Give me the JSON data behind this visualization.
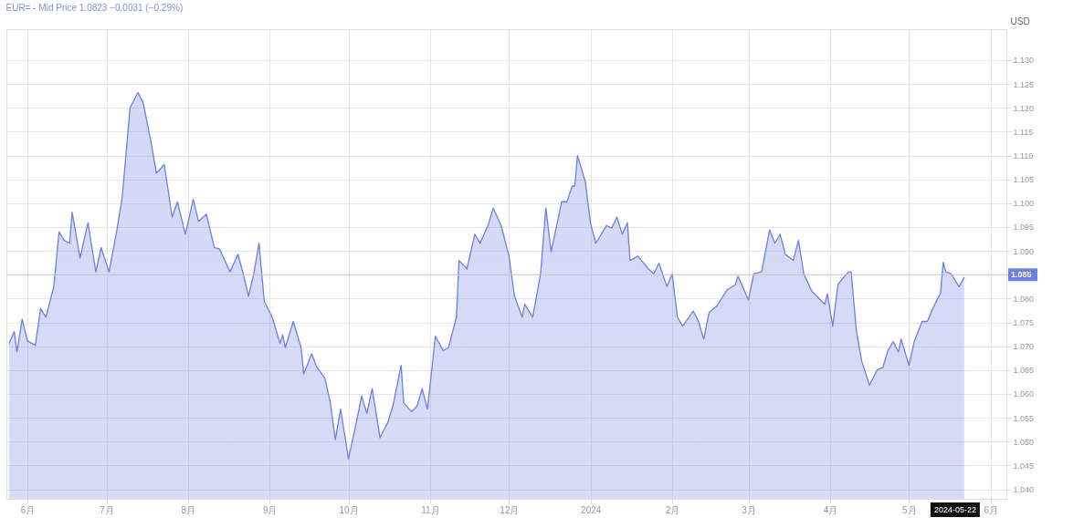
{
  "chart_data": {
    "type": "area",
    "title": "EUR= - Mid Price 1.0823 −0.0031 (−0.29%)",
    "ylabel": "USD",
    "x": [
      "2023-05-25",
      "2023-05-27",
      "2023-05-28",
      "2023-05-30",
      "2023-06-01",
      "2023-06-04",
      "2023-06-06",
      "2023-06-08",
      "2023-06-11",
      "2023-06-13",
      "2023-06-15",
      "2023-06-17",
      "2023-06-18",
      "2023-06-21",
      "2023-06-24",
      "2023-06-27",
      "2023-06-29",
      "2023-07-02",
      "2023-07-05",
      "2023-07-07",
      "2023-07-10",
      "2023-07-13",
      "2023-07-15",
      "2023-07-18",
      "2023-07-20",
      "2023-07-23",
      "2023-07-26",
      "2023-07-28",
      "2023-07-31",
      "2023-08-03",
      "2023-08-05",
      "2023-08-08",
      "2023-08-11",
      "2023-08-13",
      "2023-08-17",
      "2023-08-20",
      "2023-08-22",
      "2023-08-24",
      "2023-08-26",
      "2023-08-28",
      "2023-08-30",
      "2023-09-02",
      "2023-09-05",
      "2023-09-06",
      "2023-09-07",
      "2023-09-10",
      "2023-09-13",
      "2023-09-14",
      "2023-09-17",
      "2023-09-19",
      "2023-09-22",
      "2023-09-24",
      "2023-09-26",
      "2023-09-28",
      "2023-10-01",
      "2023-10-04",
      "2023-10-06",
      "2023-10-08",
      "2023-10-10",
      "2023-10-13",
      "2023-10-16",
      "2023-10-18",
      "2023-10-21",
      "2023-10-22",
      "2023-10-25",
      "2023-10-27",
      "2023-10-29",
      "2023-10-31",
      "2023-11-03",
      "2023-11-06",
      "2023-11-08",
      "2023-11-11",
      "2023-11-12",
      "2023-11-15",
      "2023-11-18",
      "2023-11-20",
      "2023-11-23",
      "2023-11-25",
      "2023-11-28",
      "2023-12-01",
      "2023-12-03",
      "2023-12-06",
      "2023-12-07",
      "2023-12-10",
      "2023-12-13",
      "2023-12-15",
      "2023-12-17",
      "2023-12-21",
      "2023-12-23",
      "2023-12-25",
      "2023-12-26",
      "2023-12-27",
      "2023-12-30",
      "2024-01-01",
      "2024-01-03",
      "2024-01-07",
      "2024-01-09",
      "2024-01-11",
      "2024-01-13",
      "2024-01-15",
      "2024-01-16",
      "2024-01-19",
      "2024-01-23",
      "2024-01-25",
      "2024-01-27",
      "2024-01-30",
      "2024-02-01",
      "2024-02-03",
      "2024-02-05",
      "2024-02-09",
      "2024-02-11",
      "2024-02-13",
      "2024-02-15",
      "2024-02-18",
      "2024-02-22",
      "2024-02-25",
      "2024-02-26",
      "2024-03-01",
      "2024-03-03",
      "2024-03-06",
      "2024-03-09",
      "2024-03-11",
      "2024-03-13",
      "2024-03-15",
      "2024-03-18",
      "2024-03-20",
      "2024-03-22",
      "2024-03-25",
      "2024-03-30",
      "2024-03-31",
      "2024-04-02",
      "2024-04-04",
      "2024-04-08",
      "2024-04-09",
      "2024-04-11",
      "2024-04-13",
      "2024-04-16",
      "2024-04-19",
      "2024-04-21",
      "2024-04-23",
      "2024-04-25",
      "2024-04-27",
      "2024-04-28",
      "2024-05-01",
      "2024-05-03",
      "2024-05-06",
      "2024-05-08",
      "2024-05-10",
      "2024-05-13",
      "2024-05-14",
      "2024-05-15",
      "2024-05-17",
      "2024-05-20",
      "2024-05-21",
      "2024-05-22"
    ],
    "series": [
      {
        "color": "#6f7fe0",
        "values": [
          1.0706,
          1.0731,
          1.0688,
          1.0757,
          1.0711,
          1.0702,
          1.0779,
          1.0761,
          1.0825,
          1.094,
          1.0922,
          1.0916,
          1.0981,
          1.0885,
          1.0959,
          1.0856,
          1.0907,
          1.0856,
          1.0944,
          1.1012,
          1.12,
          1.1232,
          1.121,
          1.1127,
          1.1063,
          1.1081,
          1.0971,
          1.1003,
          1.0935,
          1.1008,
          1.0962,
          1.0977,
          1.0907,
          1.0904,
          1.0856,
          1.0893,
          1.0852,
          1.0805,
          1.0852,
          1.0916,
          1.0794,
          1.0761,
          1.0706,
          1.0724,
          1.0697,
          1.0752,
          1.0697,
          1.0642,
          1.0684,
          1.0656,
          1.0633,
          1.0585,
          1.0504,
          1.0568,
          1.0464,
          1.0541,
          1.0596,
          1.0559,
          1.0611,
          1.0508,
          1.0541,
          1.0578,
          1.066,
          1.0581,
          1.0563,
          1.0574,
          1.0611,
          1.0568,
          1.0721,
          1.0691,
          1.0697,
          1.0761,
          1.088,
          1.0862,
          1.0935,
          1.0916,
          1.0953,
          1.099,
          1.0953,
          1.0889,
          1.0807,
          1.0761,
          1.0788,
          1.0761,
          1.0852,
          1.099,
          1.0898,
          1.1003,
          1.1003,
          1.1036,
          1.1036,
          1.11,
          1.1045,
          1.0957,
          1.0916,
          1.0953,
          1.0948,
          1.0971,
          1.0935,
          1.0959,
          1.088,
          1.0889,
          1.0862,
          1.0852,
          1.0874,
          1.0825,
          1.0852,
          1.0761,
          1.0742,
          1.0774,
          1.0752,
          1.0715,
          1.077,
          1.0785,
          1.0819,
          1.0829,
          1.0847,
          1.0797,
          1.0852,
          1.0856,
          1.0944,
          1.0916,
          1.0935,
          1.0893,
          1.088,
          1.0922,
          1.0852,
          1.0816,
          1.0788,
          1.081,
          1.0742,
          1.083,
          1.0856,
          1.0856,
          1.0733,
          1.0669,
          1.0618,
          1.0651,
          1.0655,
          1.0691,
          1.071,
          1.0688,
          1.0715,
          1.066,
          1.071,
          1.0752,
          1.0752,
          1.0779,
          1.0812,
          1.0876,
          1.0856,
          1.0852,
          1.0825,
          1.0834,
          1.0845
        ]
      }
    ],
    "xlim": [
      "2023-05-24",
      "2024-06-07"
    ],
    "xticks": [
      {
        "value": "2023-06-01",
        "label": "6月"
      },
      {
        "value": "2023-07-01",
        "label": "7月"
      },
      {
        "value": "2023-08-01",
        "label": "8月"
      },
      {
        "value": "2023-09-01",
        "label": "9月"
      },
      {
        "value": "2023-10-01",
        "label": "10月"
      },
      {
        "value": "2023-11-01",
        "label": "11月"
      },
      {
        "value": "2023-12-01",
        "label": "12月"
      },
      {
        "value": "2024-01-01",
        "label": "2024"
      },
      {
        "value": "2024-02-01",
        "label": "2月"
      },
      {
        "value": "2024-03-01",
        "label": "3月"
      },
      {
        "value": "2024-04-01",
        "label": "4月"
      },
      {
        "value": "2024-05-01",
        "label": "5月"
      },
      {
        "value": "2024-06-01",
        "label": "6月"
      }
    ],
    "ylim": [
      1.038,
      1.1365
    ],
    "yticks": [
      {
        "value": 1.04,
        "label": "1.040"
      },
      1.045,
      {
        "value": 1.05,
        "label": "1.050"
      },
      1.055,
      {
        "value": 1.06,
        "label": "1.060"
      },
      1.065,
      {
        "value": 1.07,
        "label": "1.070"
      },
      1.075,
      {
        "value": 1.08,
        "label": "1.080"
      },
      1.085,
      {
        "value": 1.09,
        "label": "1.090"
      },
      1.095,
      {
        "value": 1.1,
        "label": "1.100"
      },
      1.105,
      {
        "value": 1.11,
        "label": "1.110"
      },
      1.115,
      {
        "value": 1.12,
        "label": "1.120"
      },
      1.125,
      {
        "value": 1.13,
        "label": "1.130"
      }
    ],
    "ref_lines": [
      {
        "axis": "y",
        "value": 1.085,
        "label": "1.085",
        "color": "#c8c8d0"
      }
    ],
    "annotations": [
      {
        "text": "2024-05-22",
        "x": "2024-05-22"
      }
    ],
    "grid": true
  }
}
